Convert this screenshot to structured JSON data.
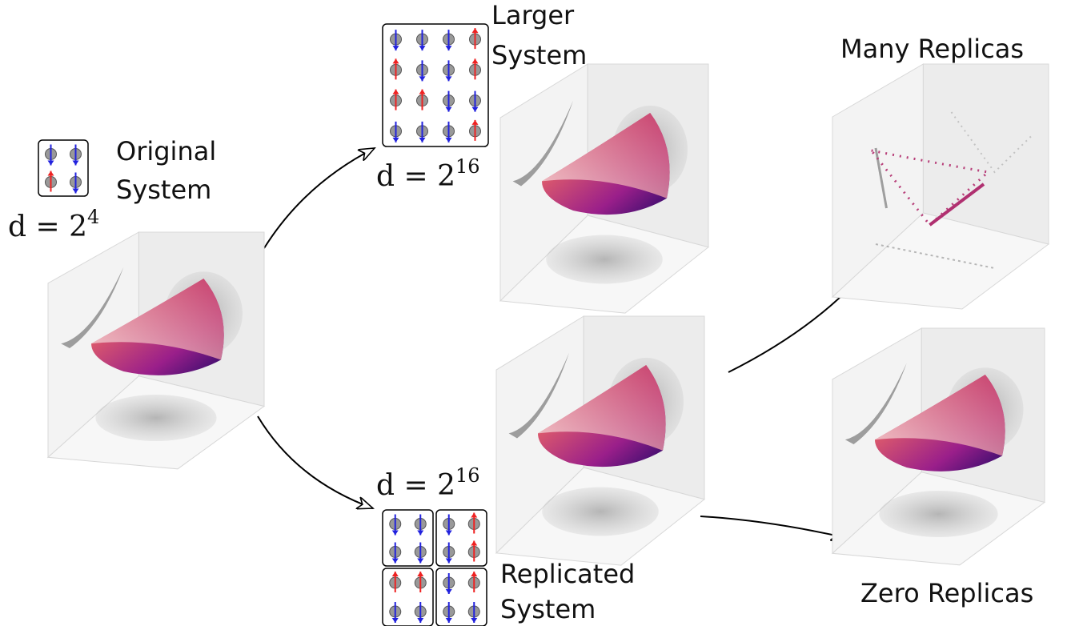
{
  "nodes": [
    {
      "label": [
        "Original",
        "System"
      ],
      "dimension": {
        "base": "d = 2",
        "exponent": "4"
      }
    },
    {
      "label": [
        "Larger",
        "System"
      ],
      "dimension": {
        "base": "d = 2",
        "exponent": "16"
      }
    },
    {
      "label": [
        "Replicated",
        "System"
      ],
      "dimension": {
        "base": "d = 2",
        "exponent": "16"
      }
    },
    {
      "label": [
        "Many Replicas"
      ]
    },
    {
      "label": [
        "Zero Replicas"
      ]
    }
  ]
}
